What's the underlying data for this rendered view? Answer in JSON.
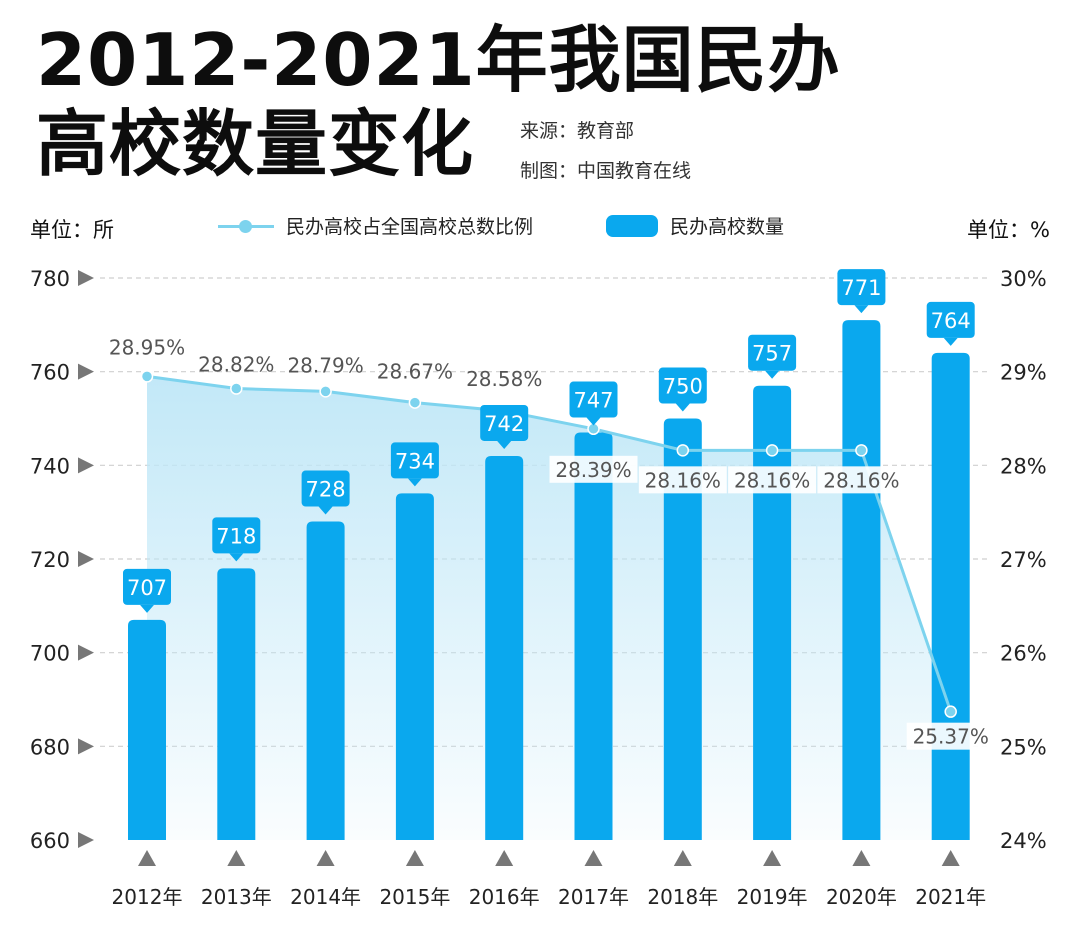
{
  "title": {
    "line1": "2012-2021年我国民办",
    "line2": "高校数量变化"
  },
  "source": "来源：教育部",
  "maker": "制图：中国教育在线",
  "units": {
    "left": "单位：所",
    "right": "单位：%"
  },
  "legend": {
    "line": "民办高校占全国高校总数比例",
    "bar": "民办高校数量"
  },
  "colors": {
    "bar": "#0aa8ee",
    "line": "#7dd3ee",
    "area": "#bfe7f7",
    "label_bg": "#0aa8ee",
    "grid": "#cfcfcf",
    "marker": "#777777"
  },
  "chart_data": {
    "type": "bar",
    "categories": [
      "2012年",
      "2013年",
      "2014年",
      "2015年",
      "2016年",
      "2017年",
      "2018年",
      "2019年",
      "2020年",
      "2021年"
    ],
    "series": [
      {
        "name": "民办高校数量",
        "type": "bar",
        "axis": "left",
        "values": [
          707,
          718,
          728,
          734,
          742,
          747,
          750,
          757,
          771,
          764
        ]
      },
      {
        "name": "民办高校占全国高校总数比例",
        "type": "line",
        "axis": "right",
        "values": [
          28.95,
          28.82,
          28.79,
          28.67,
          28.58,
          28.39,
          28.16,
          28.16,
          28.16,
          25.37
        ]
      }
    ],
    "bar_labels": [
      "707",
      "718",
      "728",
      "734",
      "742",
      "747",
      "750",
      "757",
      "771",
      "764"
    ],
    "line_labels": [
      "28.95%",
      "28.82%",
      "28.79%",
      "28.67%",
      "28.58%",
      "28.39%",
      "28.16%",
      "28.16%",
      "28.16%",
      "25.37%"
    ],
    "y_left": {
      "range": [
        660,
        780
      ],
      "ticks": [
        660,
        680,
        700,
        720,
        740,
        760,
        780
      ]
    },
    "y_right": {
      "range": [
        24,
        30
      ],
      "ticks": [
        "24%",
        "25%",
        "26%",
        "27%",
        "28%",
        "29%",
        "30%"
      ]
    },
    "grid": true,
    "legend_position": "top"
  }
}
